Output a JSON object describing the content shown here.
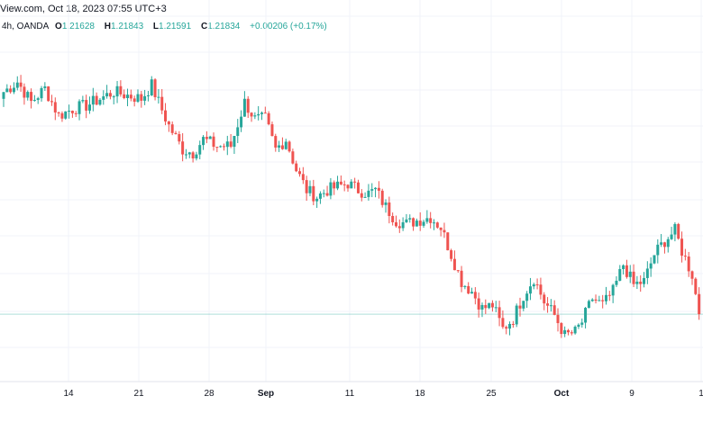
{
  "header": {
    "title": "View.com, Oct 18, 2023 07:55 UTC+3"
  },
  "ohlc": {
    "interval": "4h, OANDA",
    "open_label": "O",
    "open": "1.21628",
    "high_label": "H",
    "high": "1.21843",
    "low_label": "L",
    "low": "1.21591",
    "close_label": "C",
    "close": "1.21834",
    "change": "+0.00206 (+0.17%)"
  },
  "colors": {
    "up": "#26a69a",
    "down": "#ef5350",
    "grid": "#f0f3fa",
    "last_price_line": "#26a69a"
  },
  "chart_data": {
    "type": "candlestick",
    "x_axis": {
      "ticks": [
        {
          "label": "14",
          "major": false
        },
        {
          "label": "21",
          "major": false
        },
        {
          "label": "28",
          "major": false
        },
        {
          "label": "Sep",
          "major": true
        },
        {
          "label": "11",
          "major": false
        },
        {
          "label": "18",
          "major": false
        },
        {
          "label": "25",
          "major": false
        },
        {
          "label": "Oct",
          "major": true
        },
        {
          "label": "9",
          "major": false
        },
        {
          "label": "1",
          "major": false
        }
      ]
    },
    "grid": true,
    "y_range": [
      1.2,
      1.3
    ],
    "last_close": 1.21834,
    "anchors": [
      [
        0,
        1.284
      ],
      [
        4,
        1.287
      ],
      [
        8,
        1.281
      ],
      [
        12,
        1.285
      ],
      [
        16,
        1.277
      ],
      [
        20,
        1.279
      ],
      [
        24,
        1.28
      ],
      [
        28,
        1.282
      ],
      [
        32,
        1.284
      ],
      [
        36,
        1.283
      ],
      [
        40,
        1.282
      ],
      [
        43,
        1.286
      ],
      [
        45,
        1.281
      ],
      [
        48,
        1.274
      ],
      [
        52,
        1.267
      ],
      [
        55,
        1.266
      ],
      [
        58,
        1.27
      ],
      [
        62,
        1.268
      ],
      [
        66,
        1.268
      ],
      [
        70,
        1.281
      ],
      [
        73,
        1.276
      ],
      [
        76,
        1.276
      ],
      [
        79,
        1.267
      ],
      [
        82,
        1.27
      ],
      [
        85,
        1.261
      ],
      [
        88,
        1.255
      ],
      [
        91,
        1.253
      ],
      [
        94,
        1.255
      ],
      [
        97,
        1.256
      ],
      [
        100,
        1.257
      ],
      [
        103,
        1.255
      ],
      [
        106,
        1.254
      ],
      [
        108,
        1.255
      ],
      [
        111,
        1.25
      ],
      [
        114,
        1.246
      ],
      [
        117,
        1.245
      ],
      [
        120,
        1.246
      ],
      [
        124,
        1.247
      ],
      [
        127,
        1.244
      ],
      [
        130,
        1.236
      ],
      [
        133,
        1.228
      ],
      [
        136,
        1.225
      ],
      [
        139,
        1.22
      ],
      [
        142,
        1.221
      ],
      [
        145,
        1.214
      ],
      [
        148,
        1.217
      ],
      [
        151,
        1.224
      ],
      [
        154,
        1.229
      ],
      [
        157,
        1.222
      ],
      [
        160,
        1.218
      ],
      [
        163,
        1.212
      ],
      [
        166,
        1.213
      ],
      [
        168,
        1.216
      ],
      [
        171,
        1.223
      ],
      [
        174,
        1.221
      ],
      [
        177,
        1.225
      ],
      [
        180,
        1.233
      ],
      [
        183,
        1.227
      ],
      [
        186,
        1.228
      ],
      [
        189,
        1.236
      ],
      [
        192,
        1.24
      ],
      [
        195,
        1.243
      ],
      [
        197,
        1.237
      ],
      [
        200,
        1.23
      ],
      [
        202,
        1.2183
      ]
    ]
  }
}
